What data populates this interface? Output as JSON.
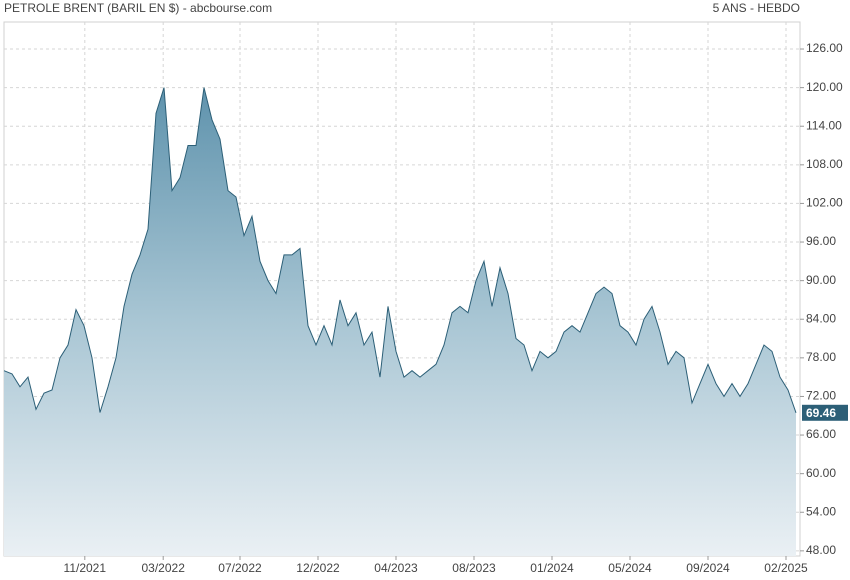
{
  "chart_data": {
    "type": "area",
    "title": "PETROLE BRENT (BARIL EN $) - abcbourse.com",
    "subtitle": "5 ANS - HEBDO",
    "color": "#2c5f77",
    "grid": true,
    "series": [
      {
        "name": "PETROLE BRENT",
        "color": "#2c5f77",
        "values": [
          76,
          75.5,
          73.5,
          75,
          70,
          72.5,
          73,
          78,
          80,
          85.5,
          83,
          78,
          69.5,
          73.5,
          78,
          86,
          91,
          94,
          98,
          116,
          120,
          104,
          106,
          111,
          111,
          120,
          115,
          112,
          104,
          103,
          97,
          100,
          93,
          90,
          88,
          94,
          94,
          95,
          83,
          80,
          83,
          80,
          87,
          83,
          85,
          80,
          82,
          75,
          86,
          79,
          75,
          76,
          75,
          76,
          77,
          80,
          85,
          86,
          85,
          90,
          93,
          86,
          92,
          88,
          81,
          80,
          76,
          79,
          78,
          79,
          82,
          83,
          82,
          85,
          88,
          89,
          88,
          83,
          82,
          80,
          84,
          86,
          82,
          77,
          79,
          78,
          71,
          74,
          77,
          74,
          72,
          74,
          72,
          74,
          77,
          80,
          79,
          75,
          73,
          69.46
        ]
      }
    ],
    "xlim": [
      0,
      99.5
    ],
    "xticks": [
      {
        "value": 10.1,
        "label": "11/2021"
      },
      {
        "value": 19.9,
        "label": "03/2022"
      },
      {
        "value": 29.5,
        "label": "07/2022"
      },
      {
        "value": 39.25,
        "label": "12/2022"
      },
      {
        "value": 49,
        "label": "04/2023"
      },
      {
        "value": 58.75,
        "label": "08/2023"
      },
      {
        "value": 68.5,
        "label": "01/2024"
      },
      {
        "value": 78.25,
        "label": "05/2024"
      },
      {
        "value": 88,
        "label": "09/2024"
      },
      {
        "value": 97.75,
        "label": "02/2025"
      }
    ],
    "ylim": [
      47.2,
      130.2
    ],
    "yticks": [
      {
        "value": 48,
        "label": "48.00"
      },
      {
        "value": 54,
        "label": "54.00"
      },
      {
        "value": 60,
        "label": "60.00"
      },
      {
        "value": 66,
        "label": "66.00"
      },
      {
        "value": 72,
        "label": "72.00"
      },
      {
        "value": 78,
        "label": "78.00"
      },
      {
        "value": 84,
        "label": "84.00"
      },
      {
        "value": 90,
        "label": "90.00"
      },
      {
        "value": 96,
        "label": "96.00"
      },
      {
        "value": 102,
        "label": "102.00"
      },
      {
        "value": 108,
        "label": "108.00"
      },
      {
        "value": 114,
        "label": "114.00"
      },
      {
        "value": 120,
        "label": "120.00"
      },
      {
        "value": 126,
        "label": "126.00"
      }
    ]
  }
}
